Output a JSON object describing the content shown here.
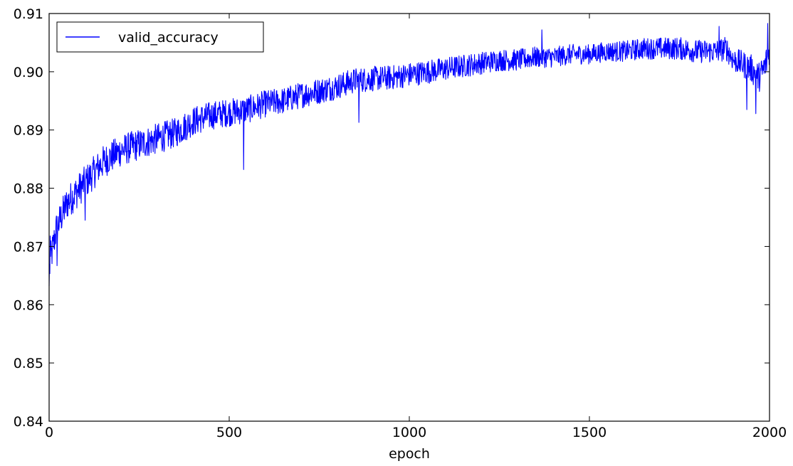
{
  "chart_data": {
    "type": "line",
    "title": "",
    "xlabel": "epoch",
    "ylabel": "",
    "xlim": [
      0,
      2000
    ],
    "ylim": [
      0.84,
      0.91
    ],
    "xticks": [
      0,
      500,
      1000,
      1500,
      2000
    ],
    "xtick_labels": [
      "0",
      "500",
      "1000",
      "1500",
      "2000"
    ],
    "yticks": [
      0.84,
      0.85,
      0.86,
      0.87,
      0.88,
      0.89,
      0.9,
      0.91
    ],
    "ytick_labels": [
      "0.84",
      "0.85",
      "0.86",
      "0.87",
      "0.88",
      "0.89",
      "0.90",
      "0.91"
    ],
    "grid": false,
    "legend": {
      "position": "upper-left"
    },
    "series": [
      {
        "name": "valid_accuracy",
        "color": "#0000ff",
        "trend": {
          "x": [
            0,
            5,
            20,
            50,
            100,
            150,
            200,
            250,
            300,
            350,
            400,
            450,
            500,
            550,
            600,
            650,
            700,
            750,
            800,
            850,
            900,
            950,
            1000,
            1050,
            1100,
            1150,
            1200,
            1250,
            1300,
            1350,
            1400,
            1450,
            1500,
            1550,
            1600,
            1650,
            1700,
            1750,
            1800,
            1850,
            1880,
            1900,
            1920,
            1950,
            1970,
            1985,
            2000
          ],
          "y": [
            0.8655,
            0.868,
            0.873,
            0.8775,
            0.881,
            0.8845,
            0.8865,
            0.8875,
            0.8885,
            0.8895,
            0.8915,
            0.8925,
            0.893,
            0.8935,
            0.8945,
            0.895,
            0.896,
            0.8967,
            0.8975,
            0.8985,
            0.8988,
            0.899,
            0.8995,
            0.9,
            0.9005,
            0.901,
            0.9015,
            0.902,
            0.902,
            0.9025,
            0.9025,
            0.903,
            0.903,
            0.9035,
            0.9035,
            0.904,
            0.904,
            0.904,
            0.9035,
            0.9035,
            0.904,
            0.902,
            0.9015,
            0.9005,
            0.899,
            0.9005,
            0.9035
          ]
        },
        "noise_amplitude": [
          [
            0,
            0.003
          ],
          [
            500,
            0.0024
          ],
          [
            1000,
            0.0021
          ],
          [
            1500,
            0.0017
          ],
          [
            1900,
            0.0021
          ],
          [
            2000,
            0.0028
          ]
        ],
        "notable_points": [
          {
            "x": 0,
            "y": 0.8632
          },
          {
            "x": 3,
            "y": 0.8718
          },
          {
            "x": 22,
            "y": 0.8667
          },
          {
            "x": 100,
            "y": 0.8745
          },
          {
            "x": 540,
            "y": 0.8832
          },
          {
            "x": 860,
            "y": 0.8913
          },
          {
            "x": 1368,
            "y": 0.9072
          },
          {
            "x": 1860,
            "y": 0.9078
          },
          {
            "x": 1937,
            "y": 0.8935
          },
          {
            "x": 1962,
            "y": 0.8928
          },
          {
            "x": 1995,
            "y": 0.9083
          }
        ]
      }
    ]
  }
}
